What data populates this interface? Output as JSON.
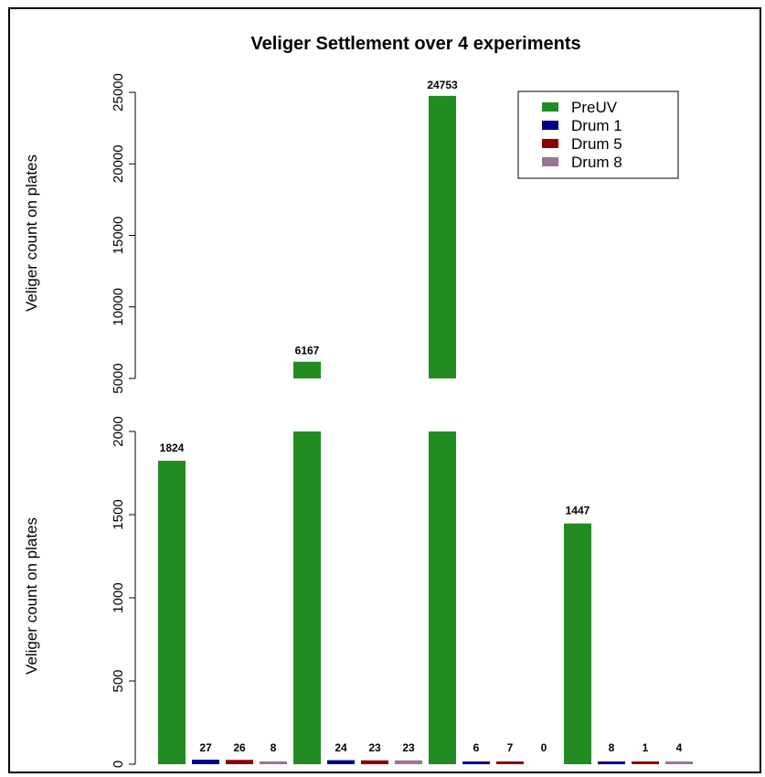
{
  "chart_data": {
    "type": "bar",
    "title": "Veliger Settlement over 4 experiments",
    "ylabel": "Veliger count on plates",
    "xlabel": "",
    "grouped": true,
    "broken_axis": true,
    "lower_ylim": [
      0,
      2000
    ],
    "upper_ylim": [
      5000,
      25000
    ],
    "lower_yticks": [
      "0",
      "500",
      "1000",
      "1500",
      "2000"
    ],
    "upper_yticks": [
      "5000",
      "10000",
      "15000",
      "20000",
      "25000"
    ],
    "legend_position": "top-right",
    "series": [
      {
        "name": "PreUV",
        "color": "#228B22",
        "values": [
          1824,
          6167,
          24753,
          1447
        ]
      },
      {
        "name": "Drum 1",
        "color": "#00008B",
        "values": [
          27,
          24,
          6,
          8
        ]
      },
      {
        "name": "Drum 5",
        "color": "#8B0000",
        "values": [
          26,
          23,
          7,
          1
        ]
      },
      {
        "name": "Drum 8",
        "color": "#9B7396",
        "values": [
          8,
          23,
          0,
          4
        ]
      }
    ],
    "data_labels": [
      [
        "1824",
        "6167",
        "24753",
        "1447"
      ],
      [
        "27",
        "24",
        "6",
        "8"
      ],
      [
        "26",
        "23",
        "7",
        "1"
      ],
      [
        "8",
        "23",
        "0",
        "4"
      ]
    ]
  }
}
